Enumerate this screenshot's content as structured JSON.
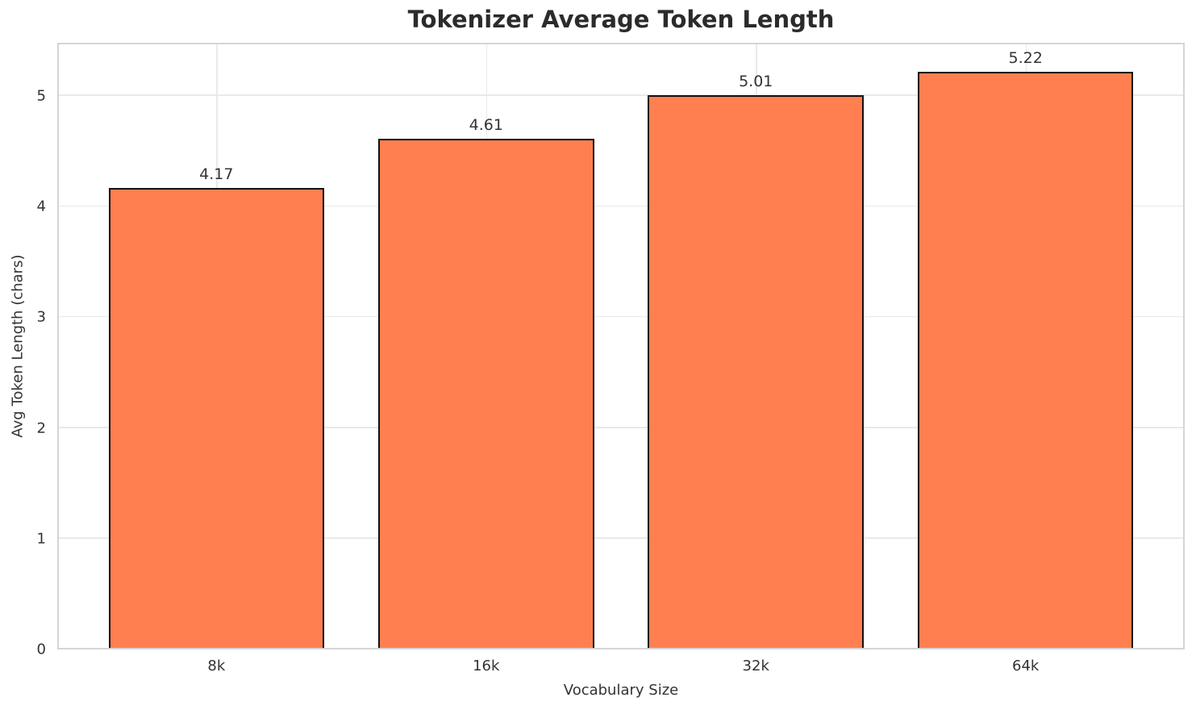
{
  "chart_data": {
    "type": "bar",
    "title": "Tokenizer Average Token Length",
    "xlabel": "Vocabulary Size",
    "ylabel": "Avg Token Length (chars)",
    "categories": [
      "8k",
      "16k",
      "32k",
      "64k"
    ],
    "values": [
      4.17,
      4.61,
      5.01,
      5.22
    ],
    "value_labels": [
      "4.17",
      "4.61",
      "5.01",
      "5.22"
    ],
    "yticks": [
      0,
      1,
      2,
      3,
      4,
      5
    ],
    "ylim": [
      0,
      5.48
    ],
    "xlim": [
      -0.59,
      3.59
    ],
    "bar_width": 0.8,
    "grid": true,
    "legend": false,
    "colors": {
      "bar_fill": "#FF7F50",
      "bar_edge": "#111111",
      "grid_line": "#e9e9e9",
      "spine": "#d5d5d5",
      "text": "#333333",
      "title": "#2b2b2b",
      "background": "#ffffff"
    }
  }
}
